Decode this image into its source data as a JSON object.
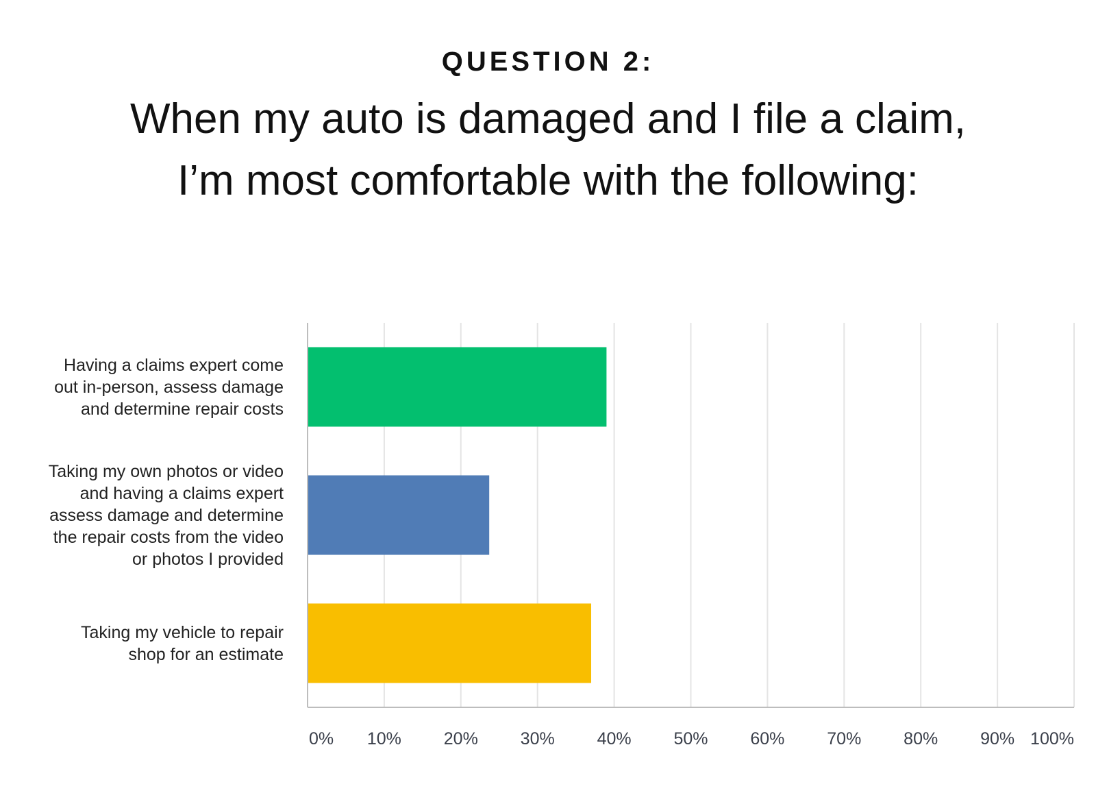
{
  "header": {
    "eyebrow": "QUESTION 2:",
    "title_line1": "When my auto is damaged and I file a claim,",
    "title_line2": "I’m most comfortable with the following:"
  },
  "chart_data": {
    "type": "bar",
    "orientation": "horizontal",
    "categories": [
      "Having a claims expert come out in-person, assess damage and determine repair costs",
      "Taking my own photos or video and having a claims expert assess damage and determine the repair costs from the video or photos I provided",
      "Taking my vehicle to repair shop for an estimate"
    ],
    "category_lines": [
      [
        "Having a claims expert come",
        "out in-person, assess damage",
        "and determine repair costs"
      ],
      [
        "Taking my own photos or video",
        "and having a claims expert",
        "assess damage and determine",
        "the repair costs from the video",
        "or photos I provided"
      ],
      [
        "Taking my vehicle to repair",
        "shop for an estimate"
      ]
    ],
    "values": [
      39,
      23.7,
      37
    ],
    "colors": [
      "#03bf6f",
      "#507cb6",
      "#f9be00"
    ],
    "xlim": [
      0,
      100
    ],
    "x_ticks": [
      "0%",
      "10%",
      "20%",
      "30%",
      "40%",
      "50%",
      "60%",
      "70%",
      "80%",
      "90%",
      "100%"
    ],
    "grid": true,
    "legend": "none"
  }
}
